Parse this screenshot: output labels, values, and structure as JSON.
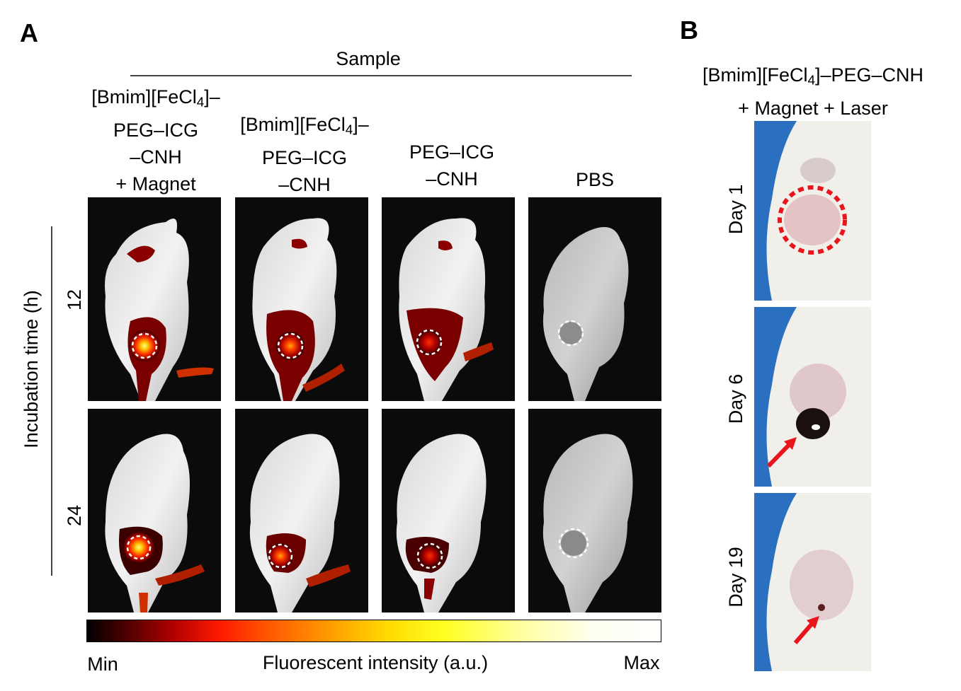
{
  "panel_a": {
    "letter": "A",
    "header": "Sample",
    "columns": [
      {
        "line1": "[Bmim][FeCl",
        "sub": "4",
        "line1_end": "]–",
        "line2": "PEG–ICG",
        "line3": "–CNH",
        "line4": "+ Magnet"
      },
      {
        "line1": "[Bmim][FeCl",
        "sub": "4",
        "line1_end": "]–",
        "line2": "PEG–ICG",
        "line3": "–CNH"
      },
      {
        "line1": "PEG–ICG",
        "line2": "–CNH"
      },
      {
        "line1": "PBS"
      }
    ],
    "row_axis_label": "Incubation time (h)",
    "rows": [
      "12",
      "24"
    ],
    "colorbar": {
      "min_label": "Min",
      "title": "Fluorescent intensity (a.u.)",
      "max_label": "Max"
    }
  },
  "panel_b": {
    "letter": "B",
    "title_line1_a": "[Bmim][FeCl",
    "title_sub": "4",
    "title_line1_b": "]–PEG–CNH",
    "title_line2": "+ Magnet + Laser",
    "days": [
      "Day 1",
      "Day 6",
      "Day 19"
    ]
  },
  "colors": {
    "tumor_circle_b": "#e8161c",
    "arrow": "#e8161c",
    "glove": "#2a6fc0"
  }
}
